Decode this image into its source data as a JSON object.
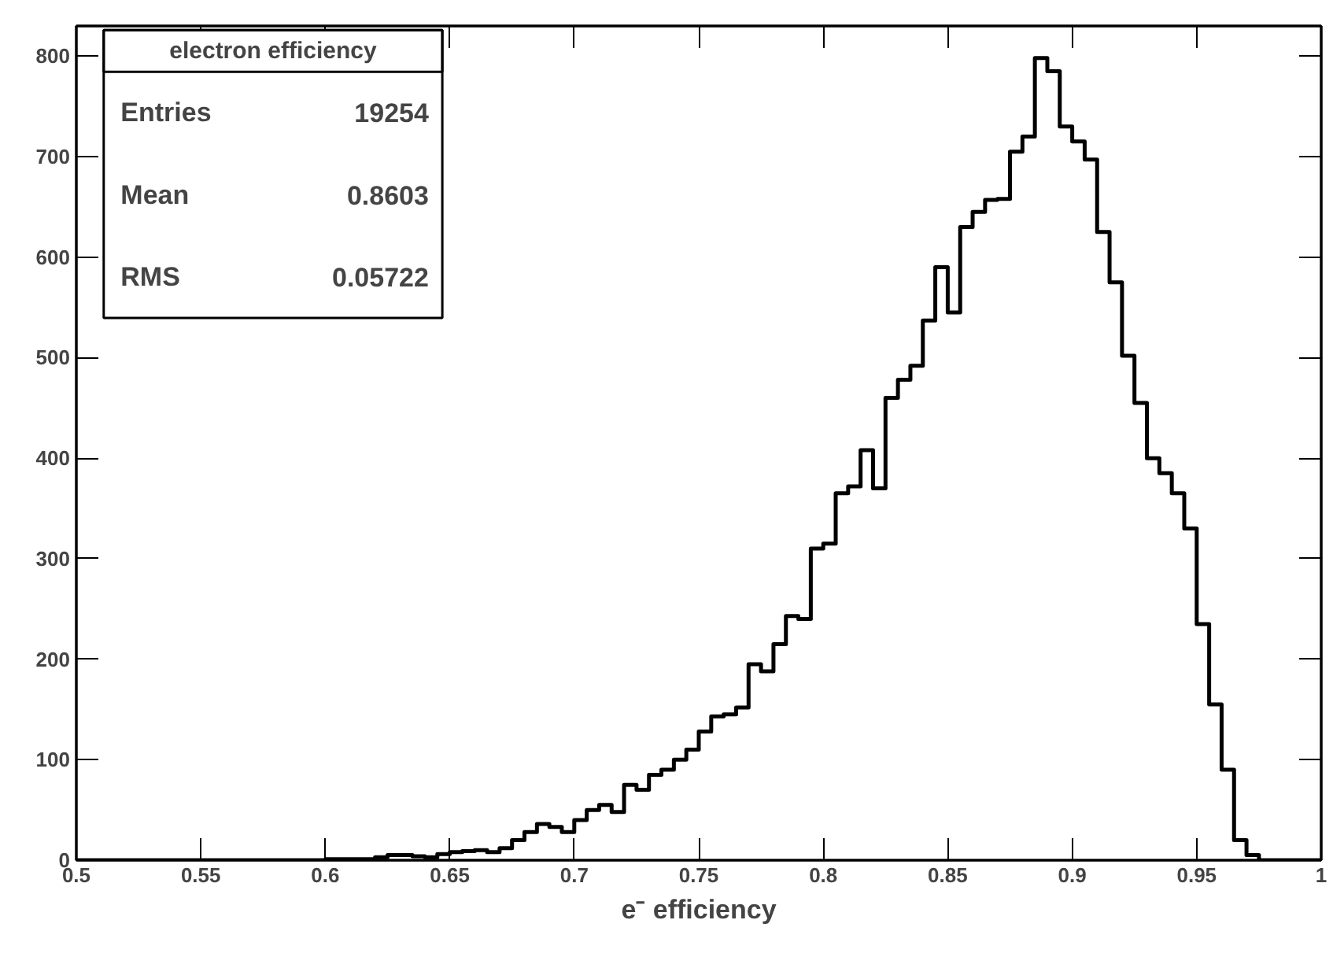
{
  "chart_data": {
    "type": "histogram",
    "title": "electron efficiency",
    "xlabel": "e⁻ efficiency",
    "annotations": [
      "Entries",
      "19254",
      "Mean",
      "0.8603",
      "RMS",
      "0.05722"
    ],
    "bins": [
      0.5,
      0.505,
      0.51,
      0.515,
      0.52,
      0.525,
      0.53,
      0.535,
      0.54,
      0.545,
      0.55,
      0.555,
      0.56,
      0.565,
      0.57,
      0.575,
      0.58,
      0.585,
      0.59,
      0.595,
      0.6,
      0.605,
      0.61,
      0.615,
      0.62,
      0.625,
      0.63,
      0.635,
      0.64,
      0.645,
      0.65,
      0.655,
      0.66,
      0.665,
      0.67,
      0.675,
      0.68,
      0.685,
      0.69,
      0.695,
      0.7,
      0.705,
      0.71,
      0.715,
      0.72,
      0.725,
      0.73,
      0.735,
      0.74,
      0.745,
      0.75,
      0.755,
      0.76,
      0.765,
      0.77,
      0.775,
      0.78,
      0.785,
      0.79,
      0.795,
      0.8,
      0.805,
      0.81,
      0.815,
      0.82,
      0.825,
      0.83,
      0.835,
      0.84,
      0.845,
      0.85,
      0.855,
      0.86,
      0.865,
      0.87,
      0.875,
      0.88,
      0.885,
      0.89,
      0.895,
      0.9,
      0.905,
      0.91,
      0.915,
      0.92,
      0.925,
      0.93,
      0.935,
      0.94,
      0.945,
      0.95,
      0.955,
      0.96,
      0.965,
      0.97,
      0.975,
      0.98,
      0.985,
      0.99,
      0.995,
      1.0
    ],
    "values": [
      0,
      0,
      0,
      0,
      0,
      0,
      0,
      0,
      0,
      0,
      0,
      0,
      0,
      0,
      0,
      0,
      0,
      0,
      0,
      0,
      1,
      1,
      1,
      1,
      3,
      5,
      5,
      4,
      3,
      6,
      8,
      9,
      10,
      8,
      12,
      20,
      28,
      36,
      33,
      28,
      40,
      50,
      55,
      48,
      75,
      70,
      85,
      90,
      100,
      110,
      128,
      143,
      145,
      152,
      195,
      188,
      215,
      243,
      240,
      310,
      315,
      365,
      372,
      408,
      370,
      460,
      478,
      492,
      537,
      590,
      545,
      630,
      645,
      657,
      658,
      705,
      720,
      798,
      785,
      730,
      715,
      697,
      625,
      575,
      502,
      455,
      400,
      385,
      365,
      330,
      235,
      155,
      90,
      20,
      5,
      0,
      0,
      0,
      0,
      0
    ],
    "color": "#000000",
    "xlim": [
      0.5,
      1.0
    ],
    "ylim": [
      0,
      830
    ],
    "xticks": [
      {
        "value": 0.5,
        "label": "0.5"
      },
      0.55,
      {
        "value": 0.6,
        "label": "0.6"
      },
      0.65,
      {
        "value": 0.7,
        "label": "0.7"
      },
      0.75,
      {
        "value": 0.8,
        "label": "0.8"
      },
      0.85,
      {
        "value": 0.9,
        "label": "0.9"
      },
      0.95,
      {
        "value": 1.0,
        "label": "1"
      }
    ],
    "yticks": [
      0,
      100,
      200,
      300,
      400,
      500,
      600,
      700,
      800
    ],
    "grid": false
  }
}
